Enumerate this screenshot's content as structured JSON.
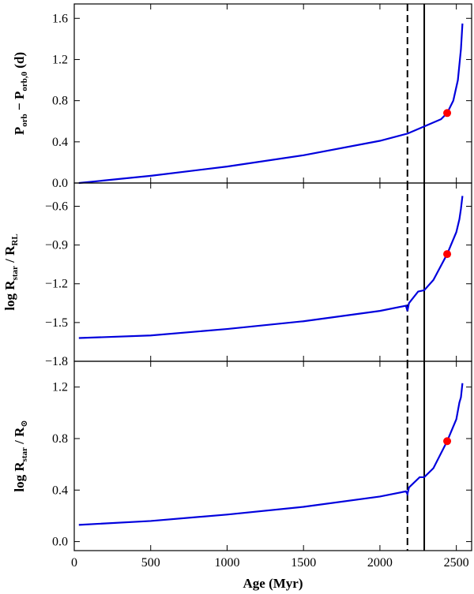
{
  "chart_data": [
    {
      "type": "line",
      "xlim": [
        0,
        2600
      ],
      "xticks": [
        0,
        500,
        1000,
        1500,
        2000,
        2500
      ],
      "ylim": [
        0,
        1.74
      ],
      "yticks": [
        {
          "value": 0,
          "label": "0.0"
        },
        0.4,
        0.8,
        1.2,
        1.6
      ],
      "ylabel": [
        "P",
        "orb",
        " − P",
        "orb,0",
        " (d)"
      ],
      "vlines": [
        {
          "x": 2180,
          "style": "dashed"
        },
        {
          "x": 2290,
          "style": "solid"
        }
      ],
      "x": [
        30,
        500,
        1000,
        1500,
        2000,
        2180,
        2290,
        2400,
        2440,
        2480,
        2510,
        2530,
        2540
      ],
      "series": [
        {
          "color": "#0000dd",
          "values": [
            0,
            0.07,
            0.16,
            0.27,
            0.41,
            0.48,
            0.55,
            0.62,
            0.68,
            0.8,
            1.0,
            1.3,
            1.55
          ]
        }
      ],
      "marker": {
        "x": 2440,
        "y": 0.68,
        "color": "#ff0000"
      }
    },
    {
      "type": "line",
      "xlim": [
        0,
        2600
      ],
      "xticks": [
        0,
        500,
        1000,
        1500,
        2000,
        2500
      ],
      "ylim": [
        -1.8,
        -0.42
      ],
      "yticks": [
        {
          "value": -1.8,
          "label": "−1.8"
        },
        {
          "value": -1.5,
          "label": "−1.5"
        },
        {
          "value": -1.2,
          "label": "−1.2"
        },
        {
          "value": -0.9,
          "label": "−0.9"
        },
        {
          "value": -0.6,
          "label": "−0.6"
        }
      ],
      "ylabel": [
        "log R",
        "star",
        " / R",
        "RL"
      ],
      "vlines": [
        {
          "x": 2180,
          "style": "dashed"
        },
        {
          "x": 2290,
          "style": "solid"
        }
      ],
      "x": [
        30,
        500,
        1000,
        1500,
        2000,
        2170,
        2180,
        2190,
        2250,
        2290,
        2350,
        2440,
        2500,
        2520,
        2530,
        2540
      ],
      "series": [
        {
          "color": "#0000dd",
          "values": [
            -1.62,
            -1.6,
            -1.55,
            -1.49,
            -1.41,
            -1.37,
            -1.41,
            -1.35,
            -1.26,
            -1.25,
            -1.17,
            -0.97,
            -0.8,
            -0.7,
            -0.62,
            -0.52
          ]
        }
      ],
      "marker": {
        "x": 2440,
        "y": -0.97,
        "color": "#ff0000"
      }
    },
    {
      "type": "line",
      "xlim": [
        0,
        2600
      ],
      "xticks": [
        0,
        500,
        1000,
        1500,
        2000,
        2500
      ],
      "xlabel": "Age (Myr)",
      "ylim": [
        -0.07,
        1.4
      ],
      "yticks": [
        {
          "value": 0,
          "label": "0.0"
        },
        0.4,
        0.8,
        1.2
      ],
      "ylabel": [
        "log R",
        "star",
        " / R",
        "⊙"
      ],
      "vlines": [
        {
          "x": 2180,
          "style": "dashed"
        },
        {
          "x": 2290,
          "style": "solid"
        }
      ],
      "x": [
        30,
        500,
        1000,
        1500,
        2000,
        2170,
        2180,
        2190,
        2260,
        2290,
        2350,
        2440,
        2500,
        2520,
        2530,
        2540
      ],
      "series": [
        {
          "color": "#0000dd",
          "values": [
            0.13,
            0.16,
            0.21,
            0.27,
            0.35,
            0.39,
            0.37,
            0.42,
            0.5,
            0.5,
            0.57,
            0.78,
            0.95,
            1.08,
            1.12,
            1.23
          ]
        }
      ],
      "marker": {
        "x": 2440,
        "y": 0.78,
        "color": "#ff0000"
      }
    }
  ]
}
